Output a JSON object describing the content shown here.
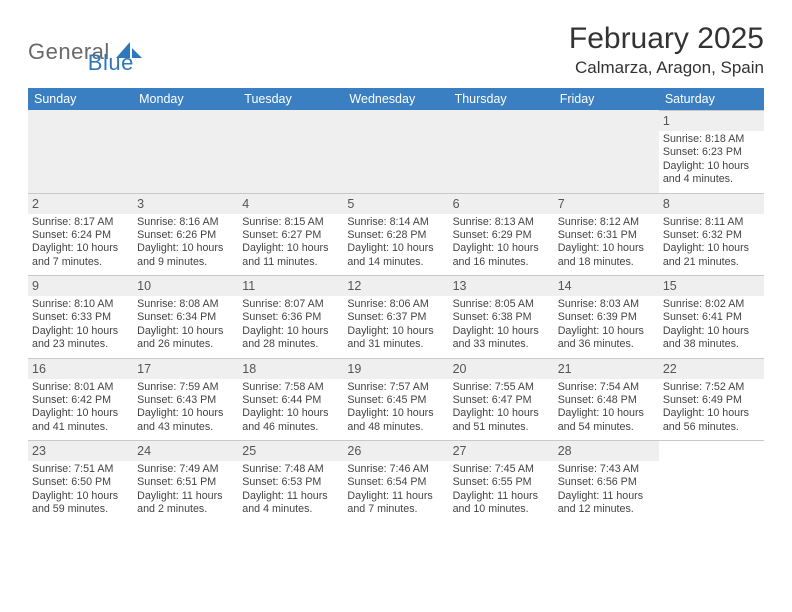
{
  "logo": {
    "text1": "General",
    "text2": "Blue"
  },
  "title": "February 2025",
  "location": "Calmarza, Aragon, Spain",
  "weekday_header_bg": "#3a7fc2",
  "weekdays": [
    "Sunday",
    "Monday",
    "Tuesday",
    "Wednesday",
    "Thursday",
    "Friday",
    "Saturday"
  ],
  "labels": {
    "sunrise": "Sunrise:",
    "sunset": "Sunset:",
    "daylight": "Daylight:"
  },
  "days": {
    "d1": {
      "n": "1",
      "sr": "8:18 AM",
      "ss": "6:23 PM",
      "dl": "10 hours and 4 minutes."
    },
    "d2": {
      "n": "2",
      "sr": "8:17 AM",
      "ss": "6:24 PM",
      "dl": "10 hours and 7 minutes."
    },
    "d3": {
      "n": "3",
      "sr": "8:16 AM",
      "ss": "6:26 PM",
      "dl": "10 hours and 9 minutes."
    },
    "d4": {
      "n": "4",
      "sr": "8:15 AM",
      "ss": "6:27 PM",
      "dl": "10 hours and 11 minutes."
    },
    "d5": {
      "n": "5",
      "sr": "8:14 AM",
      "ss": "6:28 PM",
      "dl": "10 hours and 14 minutes."
    },
    "d6": {
      "n": "6",
      "sr": "8:13 AM",
      "ss": "6:29 PM",
      "dl": "10 hours and 16 minutes."
    },
    "d7": {
      "n": "7",
      "sr": "8:12 AM",
      "ss": "6:31 PM",
      "dl": "10 hours and 18 minutes."
    },
    "d8": {
      "n": "8",
      "sr": "8:11 AM",
      "ss": "6:32 PM",
      "dl": "10 hours and 21 minutes."
    },
    "d9": {
      "n": "9",
      "sr": "8:10 AM",
      "ss": "6:33 PM",
      "dl": "10 hours and 23 minutes."
    },
    "d10": {
      "n": "10",
      "sr": "8:08 AM",
      "ss": "6:34 PM",
      "dl": "10 hours and 26 minutes."
    },
    "d11": {
      "n": "11",
      "sr": "8:07 AM",
      "ss": "6:36 PM",
      "dl": "10 hours and 28 minutes."
    },
    "d12": {
      "n": "12",
      "sr": "8:06 AM",
      "ss": "6:37 PM",
      "dl": "10 hours and 31 minutes."
    },
    "d13": {
      "n": "13",
      "sr": "8:05 AM",
      "ss": "6:38 PM",
      "dl": "10 hours and 33 minutes."
    },
    "d14": {
      "n": "14",
      "sr": "8:03 AM",
      "ss": "6:39 PM",
      "dl": "10 hours and 36 minutes."
    },
    "d15": {
      "n": "15",
      "sr": "8:02 AM",
      "ss": "6:41 PM",
      "dl": "10 hours and 38 minutes."
    },
    "d16": {
      "n": "16",
      "sr": "8:01 AM",
      "ss": "6:42 PM",
      "dl": "10 hours and 41 minutes."
    },
    "d17": {
      "n": "17",
      "sr": "7:59 AM",
      "ss": "6:43 PM",
      "dl": "10 hours and 43 minutes."
    },
    "d18": {
      "n": "18",
      "sr": "7:58 AM",
      "ss": "6:44 PM",
      "dl": "10 hours and 46 minutes."
    },
    "d19": {
      "n": "19",
      "sr": "7:57 AM",
      "ss": "6:45 PM",
      "dl": "10 hours and 48 minutes."
    },
    "d20": {
      "n": "20",
      "sr": "7:55 AM",
      "ss": "6:47 PM",
      "dl": "10 hours and 51 minutes."
    },
    "d21": {
      "n": "21",
      "sr": "7:54 AM",
      "ss": "6:48 PM",
      "dl": "10 hours and 54 minutes."
    },
    "d22": {
      "n": "22",
      "sr": "7:52 AM",
      "ss": "6:49 PM",
      "dl": "10 hours and 56 minutes."
    },
    "d23": {
      "n": "23",
      "sr": "7:51 AM",
      "ss": "6:50 PM",
      "dl": "10 hours and 59 minutes."
    },
    "d24": {
      "n": "24",
      "sr": "7:49 AM",
      "ss": "6:51 PM",
      "dl": "11 hours and 2 minutes."
    },
    "d25": {
      "n": "25",
      "sr": "7:48 AM",
      "ss": "6:53 PM",
      "dl": "11 hours and 4 minutes."
    },
    "d26": {
      "n": "26",
      "sr": "7:46 AM",
      "ss": "6:54 PM",
      "dl": "11 hours and 7 minutes."
    },
    "d27": {
      "n": "27",
      "sr": "7:45 AM",
      "ss": "6:55 PM",
      "dl": "11 hours and 10 minutes."
    },
    "d28": {
      "n": "28",
      "sr": "7:43 AM",
      "ss": "6:56 PM",
      "dl": "11 hours and 12 minutes."
    }
  },
  "layout": [
    [
      null,
      null,
      null,
      null,
      null,
      null,
      "d1"
    ],
    [
      "d2",
      "d3",
      "d4",
      "d5",
      "d6",
      "d7",
      "d8"
    ],
    [
      "d9",
      "d10",
      "d11",
      "d12",
      "d13",
      "d14",
      "d15"
    ],
    [
      "d16",
      "d17",
      "d18",
      "d19",
      "d20",
      "d21",
      "d22"
    ],
    [
      "d23",
      "d24",
      "d25",
      "d26",
      "d27",
      "d28",
      null
    ]
  ]
}
